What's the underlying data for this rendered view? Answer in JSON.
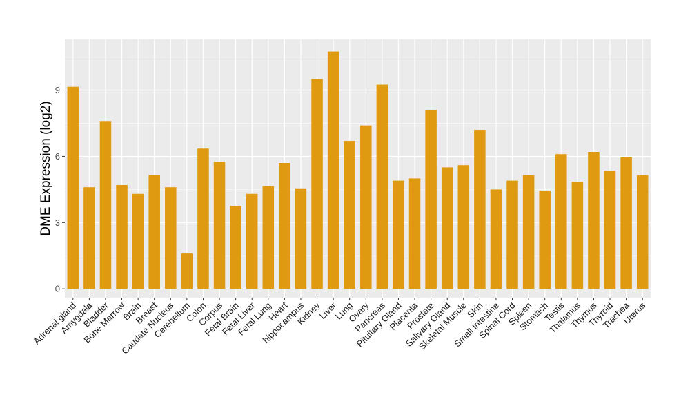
{
  "chart_data": {
    "type": "bar",
    "title": "",
    "xlabel": "",
    "ylabel": "DME Expression (log2)",
    "ylim": [
      -0.4,
      11.3
    ],
    "yticks": [
      0,
      3,
      6,
      9
    ],
    "grid": true,
    "bar_color": "#E09A12",
    "panel_color": "#EBEBEB",
    "categories": [
      "Adrenal gland",
      "Amygdala",
      "Bladder",
      "Bone Marrow",
      "Brain",
      "Breast",
      "Caudate Nucleus",
      "Cerebellum",
      "Colon",
      "Corpus",
      "Fetal Brain",
      "Fetal Liver",
      "Fetal Lung",
      "Heart",
      "hippocampus",
      "Kidney",
      "Liver",
      "Lung",
      "Ovary",
      "Pancreas",
      "Pituitary Gland",
      "Placenta",
      "Prostate",
      "Salivary Gland",
      "Skeletal Muscle",
      "Skin",
      "Small Intestine",
      "Spinal Cord",
      "Spleen",
      "Stomach",
      "Testis",
      "Thalamus",
      "Thymus",
      "Thyroid",
      "Trachea",
      "Uterus"
    ],
    "values": [
      9.15,
      4.6,
      7.6,
      4.7,
      4.3,
      5.15,
      4.6,
      1.6,
      6.35,
      5.75,
      3.75,
      4.3,
      4.65,
      5.7,
      4.55,
      9.5,
      10.75,
      6.7,
      7.4,
      9.25,
      4.9,
      5.0,
      8.1,
      5.5,
      5.6,
      7.2,
      4.5,
      4.9,
      5.15,
      4.45,
      6.1,
      4.85,
      6.2,
      5.35,
      5.95,
      5.15
    ]
  }
}
